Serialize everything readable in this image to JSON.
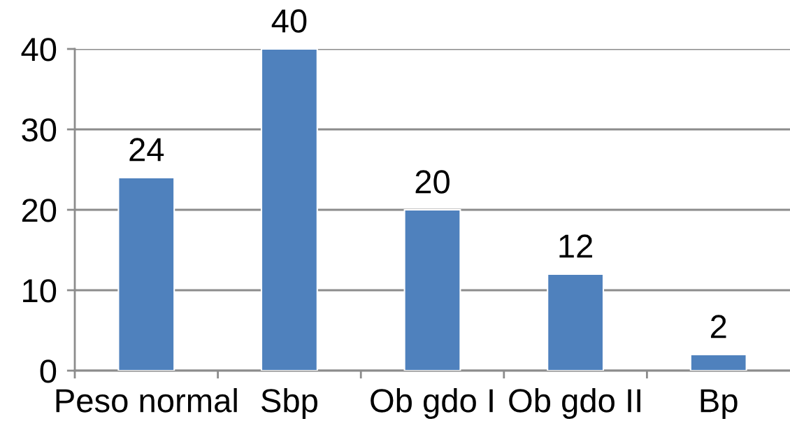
{
  "chart_data": {
    "type": "bar",
    "categories": [
      "Peso normal",
      "Sbp",
      "Ob gdo I",
      "Ob gdo II",
      "Bp"
    ],
    "values": [
      24,
      40,
      20,
      12,
      2
    ],
    "color": "#4f81bd",
    "ylim": [
      0,
      40
    ],
    "yticks": [
      0,
      10,
      20,
      30,
      40
    ],
    "grid": "y",
    "data_labels": true,
    "legend": false
  }
}
